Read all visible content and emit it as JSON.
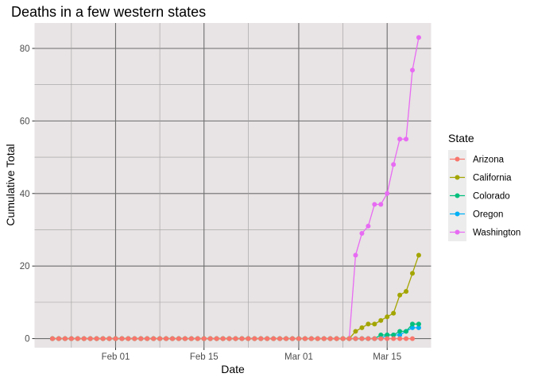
{
  "chart_data": {
    "type": "line",
    "title": "Deaths in a few western states",
    "xlabel": "Date",
    "ylabel": "Cumulative Total",
    "x_start": "2020-01-22",
    "x_end": "2020-03-19",
    "x_ticks": [
      {
        "date": "2020-02-01",
        "label": "Feb 01"
      },
      {
        "date": "2020-02-15",
        "label": "Feb 15"
      },
      {
        "date": "2020-03-01",
        "label": "Mar 01"
      },
      {
        "date": "2020-03-15",
        "label": "Mar 15"
      }
    ],
    "y_ticks": [
      0,
      20,
      40,
      60,
      80
    ],
    "ylim": [
      -2.5,
      87
    ],
    "grid": true,
    "legend": {
      "title": "State",
      "position": "right"
    },
    "series": [
      {
        "name": "Arizona",
        "color": "#F8766D",
        "points": [
          [
            "2020-03-19",
            0
          ]
        ]
      },
      {
        "name": "California",
        "color": "#A3A500",
        "points": [
          [
            "2020-03-09",
            0
          ],
          [
            "2020-03-10",
            2
          ],
          [
            "2020-03-11",
            3
          ],
          [
            "2020-03-12",
            4
          ],
          [
            "2020-03-13",
            4
          ],
          [
            "2020-03-14",
            5
          ],
          [
            "2020-03-15",
            6
          ],
          [
            "2020-03-16",
            7
          ],
          [
            "2020-03-17",
            12
          ],
          [
            "2020-03-18",
            13
          ],
          [
            "2020-03-19",
            18
          ],
          [
            "2020-03-20",
            23
          ]
        ]
      },
      {
        "name": "Colorado",
        "color": "#00BF7D",
        "points": [
          [
            "2020-03-13",
            0
          ],
          [
            "2020-03-14",
            1
          ],
          [
            "2020-03-15",
            1
          ],
          [
            "2020-03-16",
            1
          ],
          [
            "2020-03-17",
            2
          ],
          [
            "2020-03-18",
            2
          ],
          [
            "2020-03-19",
            4
          ],
          [
            "2020-03-20",
            4
          ]
        ]
      },
      {
        "name": "Oregon",
        "color": "#00B0F6",
        "points": [
          [
            "2020-03-13",
            0
          ],
          [
            "2020-03-14",
            0
          ],
          [
            "2020-03-15",
            1
          ],
          [
            "2020-03-16",
            1
          ],
          [
            "2020-03-17",
            1
          ],
          [
            "2020-03-18",
            2
          ],
          [
            "2020-03-19",
            3
          ],
          [
            "2020-03-20",
            3
          ]
        ]
      },
      {
        "name": "Washington",
        "color": "#E76BF3",
        "points": [
          [
            "2020-03-09",
            0
          ],
          [
            "2020-03-10",
            23
          ],
          [
            "2020-03-11",
            29
          ],
          [
            "2020-03-12",
            31
          ],
          [
            "2020-03-13",
            37
          ],
          [
            "2020-03-14",
            37
          ],
          [
            "2020-03-15",
            40
          ],
          [
            "2020-03-16",
            48
          ],
          [
            "2020-03-17",
            55
          ],
          [
            "2020-03-18",
            55
          ],
          [
            "2020-03-19",
            74
          ],
          [
            "2020-03-20",
            83
          ]
        ]
      }
    ]
  }
}
